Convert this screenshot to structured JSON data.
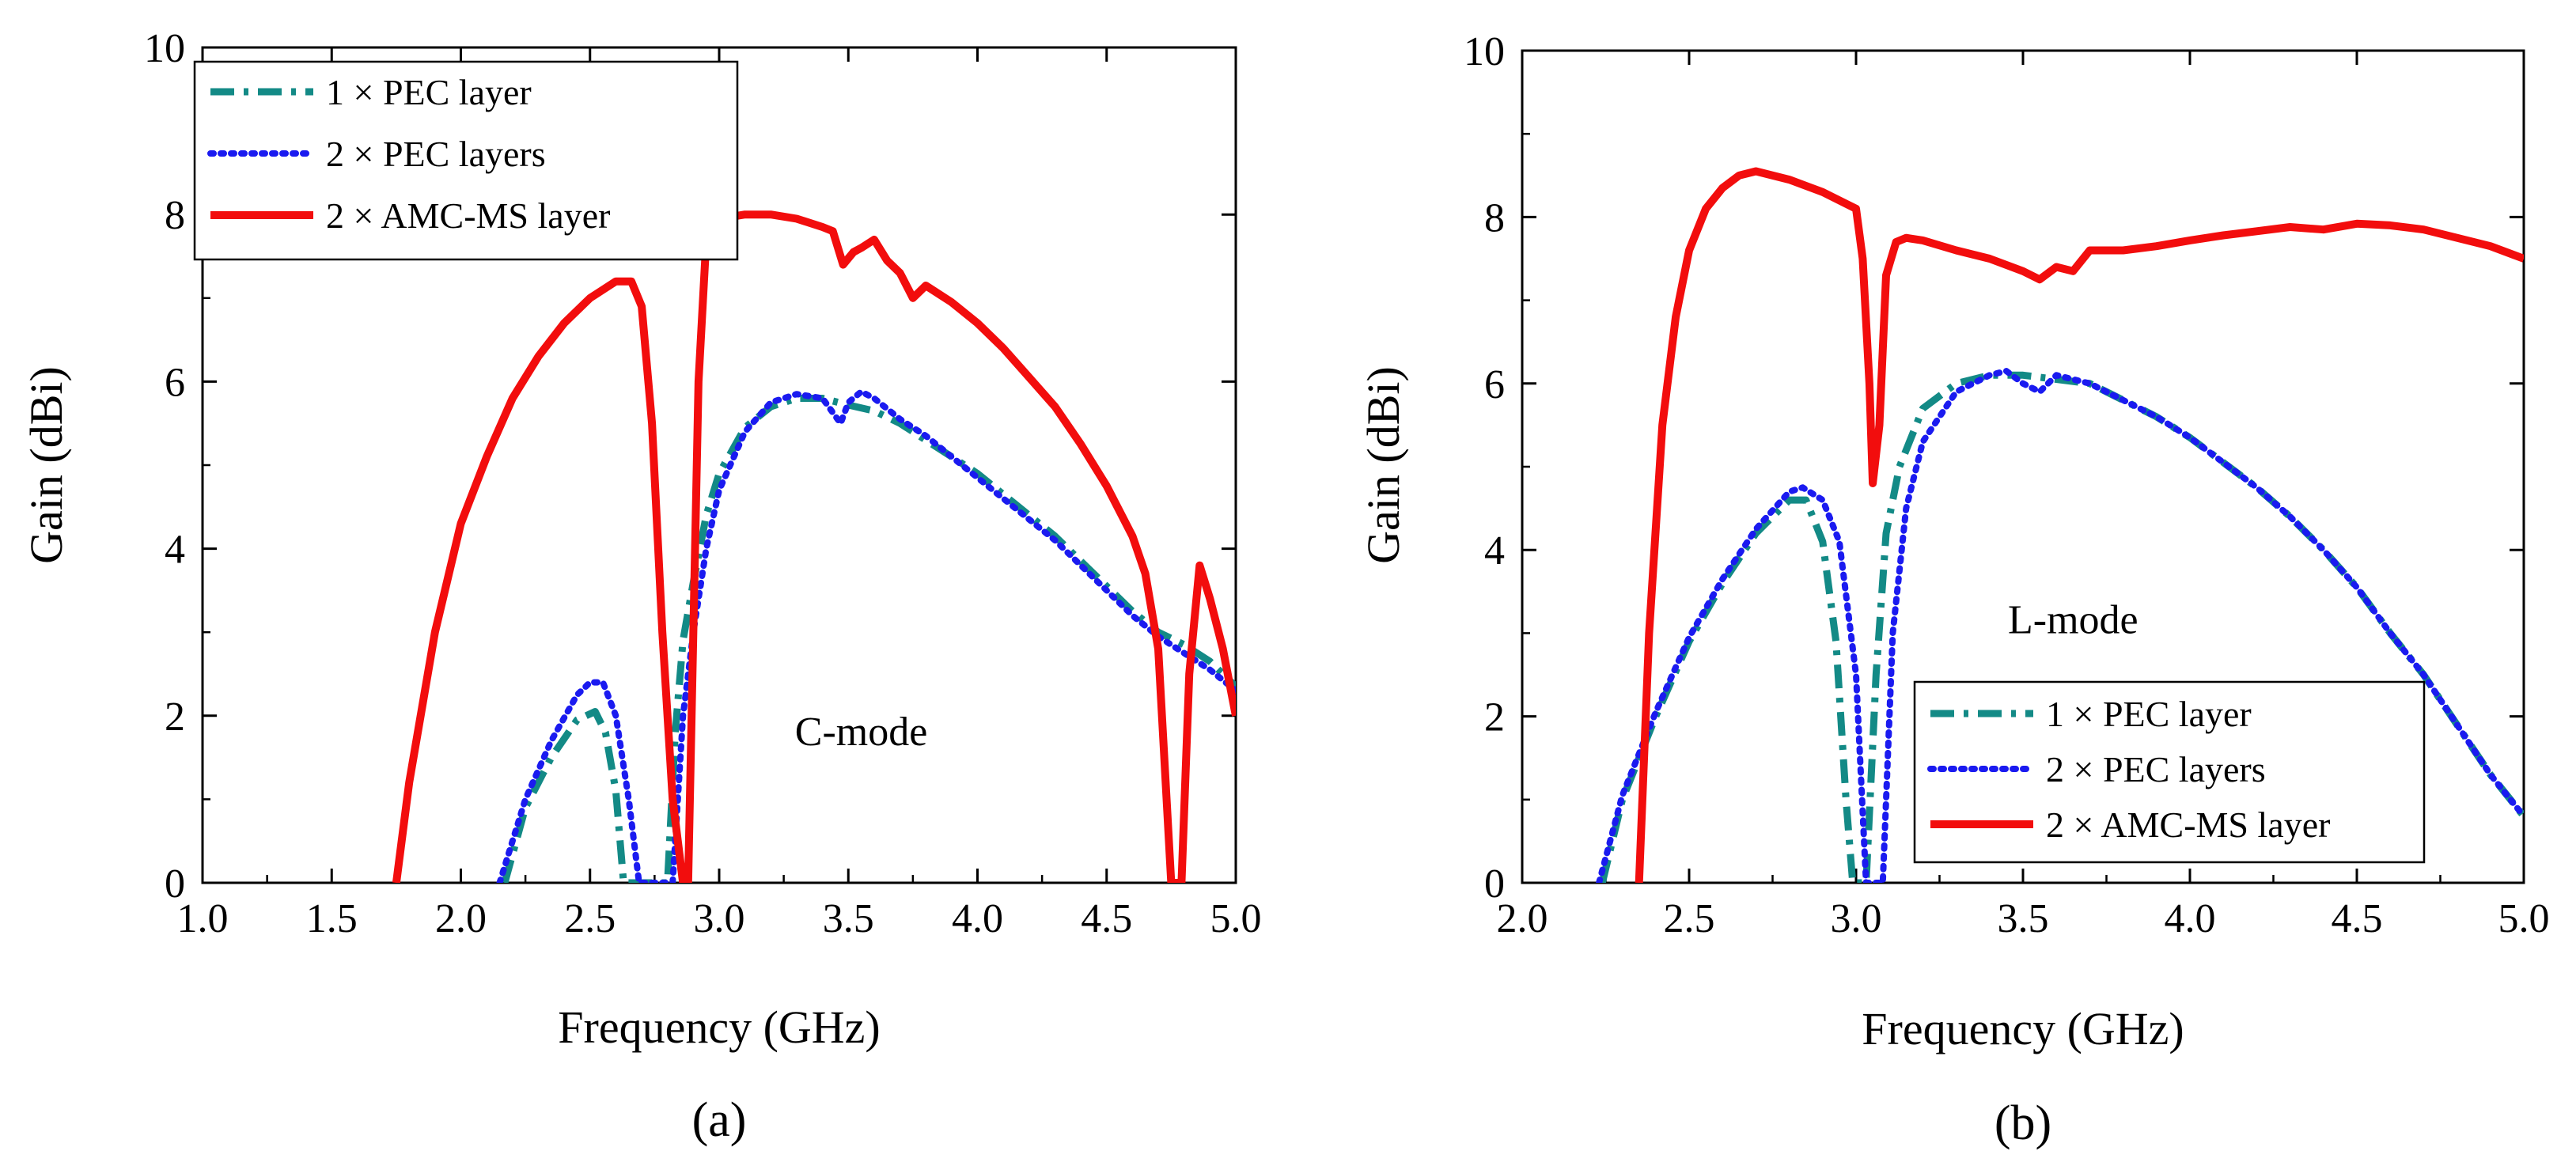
{
  "chart_data": [
    {
      "type": "line",
      "panel_label": "(a)",
      "xlabel": "Frequency (GHz)",
      "ylabel": "Gain (dBi)",
      "xlim": [
        1.0,
        5.0
      ],
      "ylim": [
        0,
        10
      ],
      "xticks": [
        "1.0",
        "1.5",
        "2.0",
        "2.5",
        "3.0",
        "3.5",
        "4.0",
        "4.5",
        "5.0"
      ],
      "xtick_values": [
        1.0,
        1.5,
        2.0,
        2.5,
        3.0,
        3.5,
        4.0,
        4.5,
        5.0
      ],
      "yticks": [
        "0",
        "2",
        "4",
        "6",
        "8",
        "10"
      ],
      "ytick_values": [
        0,
        2,
        4,
        6,
        8,
        10
      ],
      "annotation": "C-mode",
      "annotation_pos": [
        3.55,
        1.65
      ],
      "legend_position": "top-left",
      "series": [
        {
          "name": "1 × PEC layer",
          "color": "#138a86",
          "style": "dashdot",
          "x": [
            2.17,
            2.25,
            2.35,
            2.45,
            2.52,
            2.56,
            2.6,
            2.63,
            2.8,
            2.83,
            2.86,
            2.9,
            2.95,
            3.0,
            3.1,
            3.2,
            3.3,
            3.4,
            3.5,
            3.6,
            3.7,
            3.8,
            3.9,
            4.0,
            4.1,
            4.2,
            4.3,
            4.4,
            4.5,
            4.6,
            4.7,
            4.8,
            4.9,
            5.0
          ],
          "y": [
            0,
            0.9,
            1.5,
            1.95,
            2.05,
            1.8,
            1.1,
            0,
            0,
            1.8,
            2.9,
            3.6,
            4.4,
            4.9,
            5.45,
            5.7,
            5.8,
            5.8,
            5.72,
            5.65,
            5.5,
            5.3,
            5.1,
            4.9,
            4.65,
            4.4,
            4.15,
            3.85,
            3.55,
            3.25,
            3.0,
            2.85,
            2.65,
            2.35
          ]
        },
        {
          "name": "2 × PEC layers",
          "color": "#1a1af0",
          "style": "dotted",
          "x": [
            2.15,
            2.25,
            2.35,
            2.45,
            2.5,
            2.55,
            2.6,
            2.65,
            2.69,
            2.82,
            2.86,
            2.9,
            2.95,
            3.0,
            3.1,
            3.2,
            3.3,
            3.4,
            3.47,
            3.5,
            3.55,
            3.6,
            3.7,
            3.8,
            3.9,
            4.0,
            4.1,
            4.2,
            4.3,
            4.4,
            4.5,
            4.6,
            4.7,
            4.8,
            4.9,
            5.0
          ],
          "y": [
            0,
            1.0,
            1.7,
            2.25,
            2.4,
            2.4,
            2.0,
            1.0,
            0,
            0,
            2.0,
            3.0,
            4.0,
            4.7,
            5.4,
            5.75,
            5.85,
            5.8,
            5.5,
            5.75,
            5.88,
            5.8,
            5.55,
            5.35,
            5.1,
            4.85,
            4.6,
            4.35,
            4.1,
            3.8,
            3.5,
            3.2,
            2.95,
            2.75,
            2.55,
            2.3
          ]
        },
        {
          "name": "2 × AMC-MS layer",
          "color": "#f20d0d",
          "style": "solid",
          "x": [
            1.75,
            1.8,
            1.9,
            2.0,
            2.1,
            2.2,
            2.3,
            2.4,
            2.5,
            2.6,
            2.66,
            2.7,
            2.74,
            2.78,
            2.82,
            2.86,
            2.88,
            2.92,
            2.95,
            3.0,
            3.1,
            3.2,
            3.3,
            3.4,
            3.44,
            3.48,
            3.52,
            3.55,
            3.6,
            3.65,
            3.7,
            3.75,
            3.8,
            3.9,
            4.0,
            4.1,
            4.2,
            4.3,
            4.4,
            4.5,
            4.6,
            4.65,
            4.7,
            4.75,
            4.79,
            4.82,
            4.86,
            4.9,
            4.95,
            5.0
          ],
          "y": [
            0,
            1.2,
            3.0,
            4.3,
            5.1,
            5.8,
            6.3,
            6.7,
            7.0,
            7.2,
            7.2,
            6.9,
            5.5,
            3.0,
            1.0,
            0,
            0,
            6.0,
            7.7,
            7.95,
            8.0,
            8.0,
            7.95,
            7.85,
            7.8,
            7.4,
            7.55,
            7.6,
            7.7,
            7.45,
            7.3,
            7.0,
            7.15,
            6.95,
            6.7,
            6.4,
            6.05,
            5.7,
            5.25,
            4.75,
            4.15,
            3.7,
            2.8,
            0,
            0,
            2.5,
            3.8,
            3.4,
            2.8,
            2.0
          ]
        }
      ]
    },
    {
      "type": "line",
      "panel_label": "(b)",
      "xlabel": "Frequency (GHz)",
      "ylabel": "Gain (dBi)",
      "xlim": [
        2.0,
        5.0
      ],
      "ylim": [
        0,
        10
      ],
      "xticks": [
        "2.0",
        "2.5",
        "3.0",
        "3.5",
        "4.0",
        "4.5",
        "5.0"
      ],
      "xtick_values": [
        2.0,
        2.5,
        3.0,
        3.5,
        4.0,
        4.5,
        5.0
      ],
      "yticks": [
        "0",
        "2",
        "4",
        "6",
        "8",
        "10"
      ],
      "ytick_values": [
        0,
        2,
        4,
        6,
        8,
        10
      ],
      "annotation": "L-mode",
      "annotation_pos": [
        3.65,
        3.0
      ],
      "legend_position": "bottom-right",
      "series": [
        {
          "name": "1 × PEC layer",
          "color": "#138a86",
          "style": "dashdot",
          "x": [
            2.24,
            2.3,
            2.4,
            2.5,
            2.6,
            2.7,
            2.8,
            2.85,
            2.9,
            2.94,
            2.97,
            2.99,
            3.03,
            3.06,
            3.09,
            3.13,
            3.2,
            3.3,
            3.4,
            3.5,
            3.6,
            3.7,
            3.8,
            3.9,
            4.0,
            4.1,
            4.2,
            4.3,
            4.4,
            4.5,
            4.6,
            4.7,
            4.8,
            4.9,
            5.0
          ],
          "y": [
            0,
            1.0,
            2.0,
            2.9,
            3.6,
            4.2,
            4.6,
            4.6,
            4.1,
            2.9,
            1.0,
            0,
            0,
            2.5,
            4.2,
            5.0,
            5.7,
            6.0,
            6.1,
            6.1,
            6.05,
            6.0,
            5.8,
            5.6,
            5.35,
            5.05,
            4.75,
            4.4,
            4.0,
            3.55,
            3.0,
            2.5,
            1.9,
            1.3,
            0.8
          ]
        },
        {
          "name": "2 × PEC layers",
          "color": "#1a1af0",
          "style": "dotted",
          "x": [
            2.23,
            2.3,
            2.4,
            2.5,
            2.6,
            2.7,
            2.8,
            2.84,
            2.9,
            2.95,
            3.0,
            3.03,
            3.08,
            3.11,
            3.15,
            3.2,
            3.3,
            3.4,
            3.45,
            3.5,
            3.55,
            3.6,
            3.7,
            3.8,
            3.9,
            4.0,
            4.1,
            4.2,
            4.3,
            4.4,
            4.5,
            4.6,
            4.7,
            4.8,
            4.9,
            5.0
          ],
          "y": [
            0,
            1.05,
            2.05,
            2.95,
            3.65,
            4.25,
            4.7,
            4.75,
            4.6,
            4.1,
            2.5,
            0,
            0,
            3.0,
            4.5,
            5.3,
            5.9,
            6.1,
            6.15,
            6.0,
            5.9,
            6.1,
            6.0,
            5.8,
            5.6,
            5.35,
            5.05,
            4.75,
            4.4,
            4.0,
            3.55,
            3.0,
            2.5,
            1.9,
            1.3,
            0.8
          ]
        },
        {
          "name": "2 × AMC-MS layer",
          "color": "#f20d0d",
          "style": "solid",
          "x": [
            2.35,
            2.38,
            2.42,
            2.46,
            2.5,
            2.55,
            2.6,
            2.65,
            2.7,
            2.8,
            2.9,
            3.0,
            3.02,
            3.04,
            3.05,
            3.07,
            3.09,
            3.12,
            3.15,
            3.2,
            3.3,
            3.4,
            3.5,
            3.55,
            3.6,
            3.65,
            3.7,
            3.8,
            3.9,
            4.0,
            4.1,
            4.2,
            4.3,
            4.4,
            4.5,
            4.6,
            4.7,
            4.8,
            4.9,
            5.0
          ],
          "y": [
            0,
            3.0,
            5.5,
            6.8,
            7.6,
            8.1,
            8.35,
            8.5,
            8.55,
            8.45,
            8.3,
            8.1,
            7.5,
            6.0,
            4.8,
            5.5,
            7.3,
            7.7,
            7.75,
            7.72,
            7.6,
            7.5,
            7.35,
            7.25,
            7.4,
            7.35,
            7.6,
            7.6,
            7.65,
            7.72,
            7.78,
            7.83,
            7.88,
            7.85,
            7.92,
            7.9,
            7.85,
            7.75,
            7.65,
            7.5
          ]
        }
      ]
    }
  ]
}
